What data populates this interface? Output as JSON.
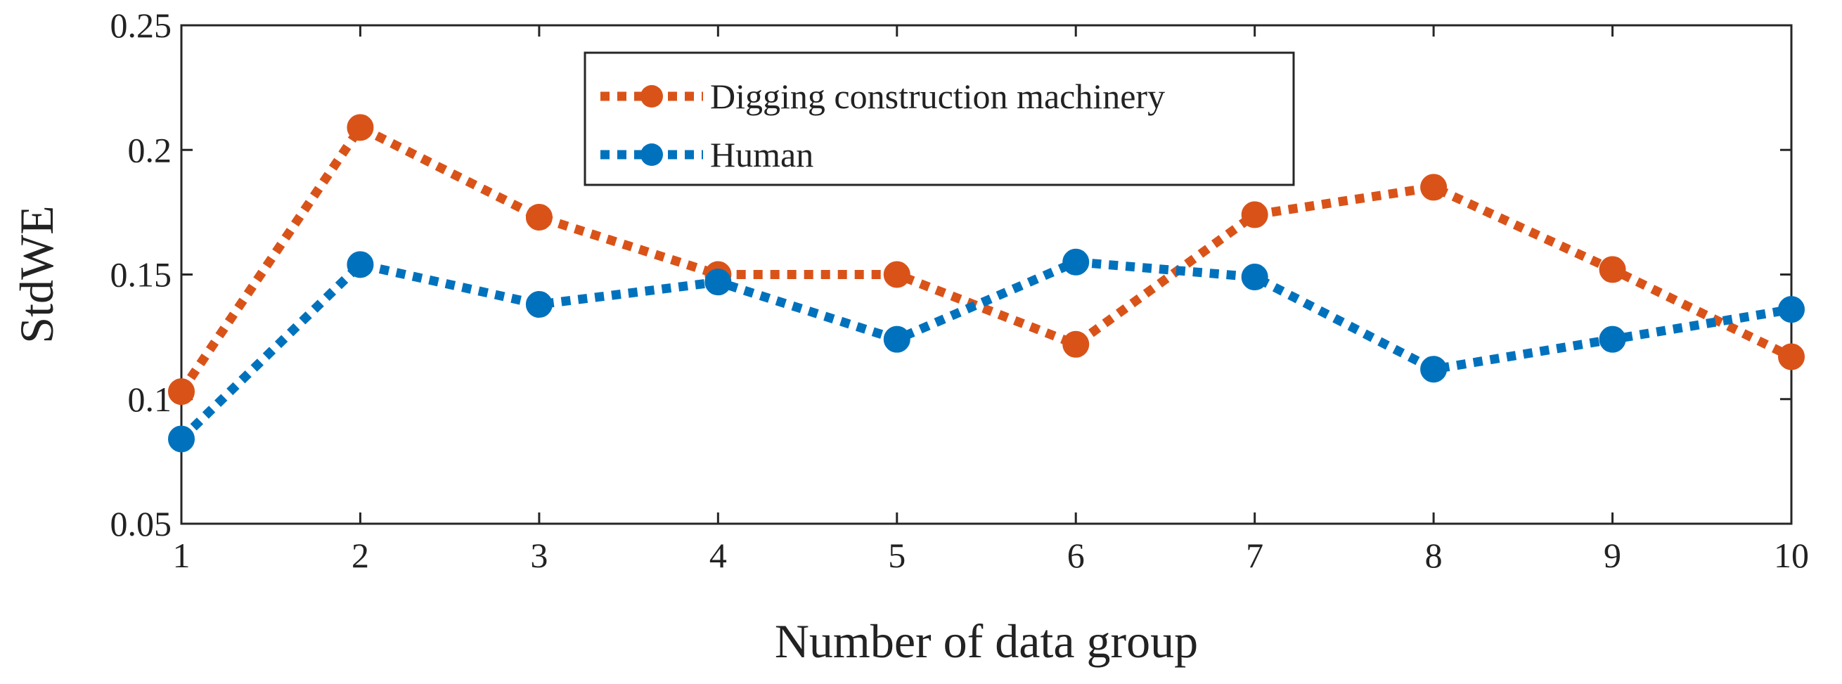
{
  "chart_data": {
    "type": "line",
    "title": "",
    "xlabel": "Number of data group",
    "ylabel": "StdWE",
    "x": [
      1,
      2,
      3,
      4,
      5,
      6,
      7,
      8,
      9,
      10
    ],
    "xlim": [
      1,
      10
    ],
    "ylim": [
      0.05,
      0.25
    ],
    "xticks": [
      1,
      2,
      3,
      4,
      5,
      6,
      7,
      8,
      9,
      10
    ],
    "xtick_labels": [
      "1",
      "2",
      "3",
      "4",
      "5",
      "6",
      "7",
      "8",
      "9",
      "10"
    ],
    "yticks": [
      0.05,
      0.1,
      0.15,
      0.2,
      0.25
    ],
    "ytick_labels": [
      "0.05",
      "0.1",
      "0.15",
      "0.2",
      "0.25"
    ],
    "grid": false,
    "legend_position": "top-center",
    "series": [
      {
        "name": "Digging construction machinery",
        "color": "#D95319",
        "line_style": "dotted",
        "marker": "circle",
        "values": [
          0.103,
          0.209,
          0.173,
          0.15,
          0.15,
          0.122,
          0.174,
          0.185,
          0.152,
          0.117
        ]
      },
      {
        "name": "Human",
        "color": "#0072BD",
        "line_style": "dotted",
        "marker": "circle",
        "values": [
          0.084,
          0.154,
          0.138,
          0.147,
          0.124,
          0.155,
          0.149,
          0.112,
          0.124,
          0.136
        ]
      }
    ]
  }
}
